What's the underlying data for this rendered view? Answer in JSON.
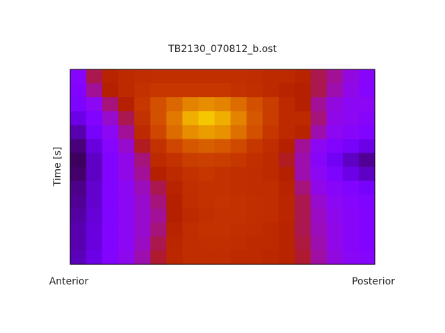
{
  "chart_data": {
    "type": "heatmap",
    "title": "TB2130_070812_b.ost",
    "ylabel": "Time [s]",
    "xlabels": [
      "Anterior",
      "Posterior"
    ],
    "colormap": "gnuplot",
    "zlim": [
      0,
      1
    ],
    "z": [
      [
        0.27,
        0.45,
        0.52,
        0.55,
        0.56,
        0.57,
        0.57,
        0.57,
        0.57,
        0.57,
        0.57,
        0.56,
        0.55,
        0.55,
        0.52,
        0.45,
        0.4,
        0.33,
        0.28
      ],
      [
        0.26,
        0.4,
        0.5,
        0.55,
        0.58,
        0.6,
        0.6,
        0.6,
        0.6,
        0.6,
        0.58,
        0.57,
        0.55,
        0.52,
        0.5,
        0.45,
        0.38,
        0.32,
        0.27
      ],
      [
        0.24,
        0.3,
        0.42,
        0.5,
        0.6,
        0.68,
        0.74,
        0.8,
        0.82,
        0.8,
        0.75,
        0.68,
        0.62,
        0.55,
        0.5,
        0.4,
        0.33,
        0.3,
        0.3
      ],
      [
        0.18,
        0.25,
        0.35,
        0.45,
        0.58,
        0.68,
        0.78,
        0.88,
        0.92,
        0.88,
        0.8,
        0.7,
        0.62,
        0.55,
        0.55,
        0.42,
        0.32,
        0.3,
        0.28
      ],
      [
        0.12,
        0.22,
        0.3,
        0.4,
        0.55,
        0.65,
        0.75,
        0.82,
        0.85,
        0.83,
        0.76,
        0.68,
        0.6,
        0.55,
        0.52,
        0.38,
        0.3,
        0.28,
        0.25
      ],
      [
        0.08,
        0.17,
        0.27,
        0.35,
        0.48,
        0.58,
        0.65,
        0.7,
        0.72,
        0.7,
        0.66,
        0.6,
        0.56,
        0.5,
        0.4,
        0.3,
        0.26,
        0.22,
        0.18
      ],
      [
        0.06,
        0.14,
        0.25,
        0.32,
        0.42,
        0.55,
        0.58,
        0.62,
        0.63,
        0.62,
        0.6,
        0.57,
        0.55,
        0.48,
        0.38,
        0.28,
        0.2,
        0.14,
        0.1
      ],
      [
        0.07,
        0.14,
        0.25,
        0.32,
        0.4,
        0.5,
        0.55,
        0.58,
        0.6,
        0.58,
        0.57,
        0.56,
        0.55,
        0.5,
        0.38,
        0.3,
        0.24,
        0.18,
        0.14
      ],
      [
        0.09,
        0.15,
        0.25,
        0.3,
        0.37,
        0.45,
        0.52,
        0.57,
        0.58,
        0.58,
        0.57,
        0.56,
        0.56,
        0.52,
        0.42,
        0.32,
        0.28,
        0.25,
        0.22
      ],
      [
        0.1,
        0.15,
        0.25,
        0.3,
        0.35,
        0.42,
        0.5,
        0.56,
        0.58,
        0.59,
        0.58,
        0.57,
        0.56,
        0.53,
        0.45,
        0.35,
        0.3,
        0.27,
        0.25
      ],
      [
        0.11,
        0.16,
        0.25,
        0.3,
        0.35,
        0.4,
        0.5,
        0.55,
        0.57,
        0.58,
        0.58,
        0.57,
        0.56,
        0.53,
        0.45,
        0.36,
        0.31,
        0.28,
        0.26
      ],
      [
        0.12,
        0.17,
        0.25,
        0.3,
        0.35,
        0.42,
        0.52,
        0.56,
        0.58,
        0.58,
        0.57,
        0.56,
        0.55,
        0.52,
        0.45,
        0.37,
        0.32,
        0.28,
        0.26
      ],
      [
        0.12,
        0.17,
        0.25,
        0.3,
        0.36,
        0.45,
        0.53,
        0.56,
        0.57,
        0.57,
        0.56,
        0.55,
        0.55,
        0.52,
        0.46,
        0.38,
        0.32,
        0.28,
        0.26
      ],
      [
        0.13,
        0.18,
        0.26,
        0.31,
        0.38,
        0.47,
        0.54,
        0.56,
        0.56,
        0.56,
        0.55,
        0.55,
        0.54,
        0.52,
        0.47,
        0.39,
        0.33,
        0.29,
        0.27
      ]
    ]
  }
}
